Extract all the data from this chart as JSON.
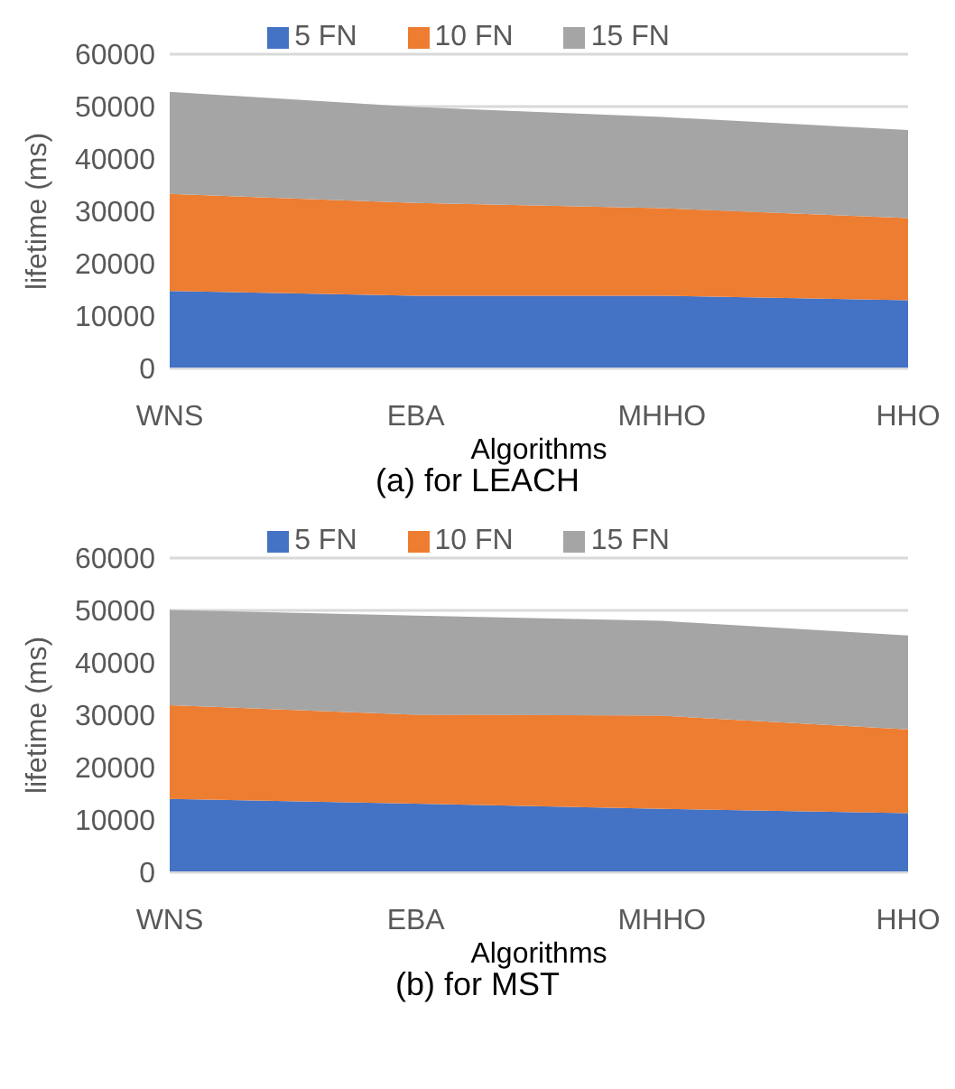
{
  "chart_data": [
    {
      "type": "area",
      "title": "(a) for LEACH",
      "xlabel": "Algorithms",
      "ylabel": "lifetime (ms)",
      "categories": [
        "WNS",
        "EBA",
        "MHHO",
        "HHO"
      ],
      "stacked": true,
      "series": [
        {
          "name": "5 FN",
          "color": "#4472c4",
          "values": [
            14800,
            13900,
            13900,
            13000
          ]
        },
        {
          "name": "10 FN",
          "color": "#ed7d31",
          "values": [
            18500,
            17700,
            16700,
            15700
          ]
        },
        {
          "name": "15 FN",
          "color": "#a5a5a5",
          "values": [
            19500,
            18300,
            17400,
            16800
          ]
        }
      ],
      "ylim": [
        0,
        60000
      ],
      "yticks": [
        0,
        10000,
        20000,
        30000,
        40000,
        50000,
        60000
      ],
      "grid": "y",
      "legend": "top"
    },
    {
      "type": "area",
      "title": "(b) for MST",
      "xlabel": "Algorithms",
      "ylabel": "lifetime (ms)",
      "categories": [
        "WNS",
        "EBA",
        "MHHO",
        "HHO"
      ],
      "stacked": true,
      "series": [
        {
          "name": "5 FN",
          "color": "#4472c4",
          "values": [
            14000,
            13100,
            12100,
            11300
          ]
        },
        {
          "name": "10 FN",
          "color": "#ed7d31",
          "values": [
            17900,
            17000,
            17800,
            16000
          ]
        },
        {
          "name": "15 FN",
          "color": "#a5a5a5",
          "values": [
            18200,
            18900,
            18100,
            17900
          ]
        }
      ],
      "ylim": [
        0,
        60000
      ],
      "yticks": [
        0,
        10000,
        20000,
        30000,
        40000,
        50000,
        60000
      ],
      "grid": "y",
      "legend": "top"
    }
  ]
}
